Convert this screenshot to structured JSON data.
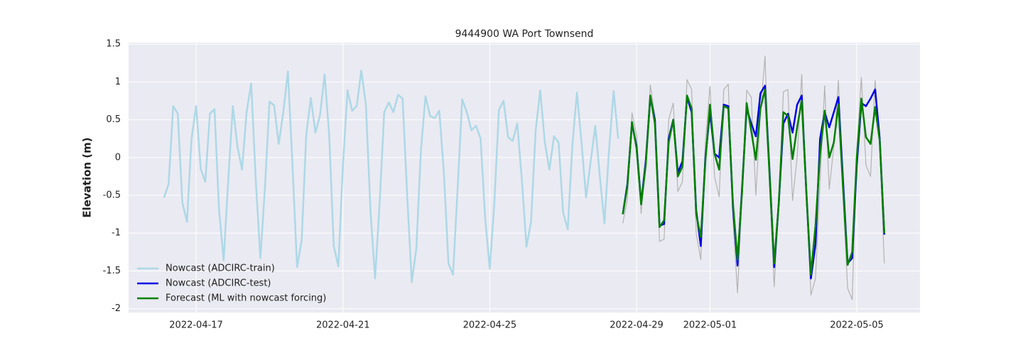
{
  "chart_data": {
    "type": "line",
    "title": "9444900 WA Port Townsend",
    "y_label": "Elevation (m)",
    "x": [
      "2022-04-16 03:00",
      "2022-04-16 06:00",
      "2022-04-16 09:00",
      "2022-04-16 12:00",
      "2022-04-16 15:00",
      "2022-04-16 18:00",
      "2022-04-16 21:00",
      "2022-04-17 00:00",
      "2022-04-17 03:00",
      "2022-04-17 06:00",
      "2022-04-17 09:00",
      "2022-04-17 12:00",
      "2022-04-17 15:00",
      "2022-04-17 18:00",
      "2022-04-17 21:00",
      "2022-04-18 00:00",
      "2022-04-18 03:00",
      "2022-04-18 06:00",
      "2022-04-18 09:00",
      "2022-04-18 12:00",
      "2022-04-18 15:00",
      "2022-04-18 18:00",
      "2022-04-18 21:00",
      "2022-04-19 00:00",
      "2022-04-19 03:00",
      "2022-04-19 06:00",
      "2022-04-19 09:00",
      "2022-04-19 12:00",
      "2022-04-19 15:00",
      "2022-04-19 18:00",
      "2022-04-19 21:00",
      "2022-04-20 00:00",
      "2022-04-20 03:00",
      "2022-04-20 06:00",
      "2022-04-20 09:00",
      "2022-04-20 12:00",
      "2022-04-20 15:00",
      "2022-04-20 18:00",
      "2022-04-20 21:00",
      "2022-04-21 00:00",
      "2022-04-21 03:00",
      "2022-04-21 06:00",
      "2022-04-21 09:00",
      "2022-04-21 12:00",
      "2022-04-21 15:00",
      "2022-04-21 18:00",
      "2022-04-21 21:00",
      "2022-04-22 00:00",
      "2022-04-22 03:00",
      "2022-04-22 06:00",
      "2022-04-22 09:00",
      "2022-04-22 12:00",
      "2022-04-22 15:00",
      "2022-04-22 18:00",
      "2022-04-22 21:00",
      "2022-04-23 00:00",
      "2022-04-23 03:00",
      "2022-04-23 06:00",
      "2022-04-23 09:00",
      "2022-04-23 12:00",
      "2022-04-23 15:00",
      "2022-04-23 18:00",
      "2022-04-23 21:00",
      "2022-04-24 00:00",
      "2022-04-24 03:00",
      "2022-04-24 06:00",
      "2022-04-24 09:00",
      "2022-04-24 12:00",
      "2022-04-24 15:00",
      "2022-04-24 18:00",
      "2022-04-24 21:00",
      "2022-04-25 00:00",
      "2022-04-25 03:00",
      "2022-04-25 06:00",
      "2022-04-25 09:00",
      "2022-04-25 12:00",
      "2022-04-25 15:00",
      "2022-04-25 18:00",
      "2022-04-25 21:00",
      "2022-04-26 00:00",
      "2022-04-26 03:00",
      "2022-04-26 06:00",
      "2022-04-26 09:00",
      "2022-04-26 12:00",
      "2022-04-26 15:00",
      "2022-04-26 18:00",
      "2022-04-26 21:00",
      "2022-04-27 00:00",
      "2022-04-27 03:00",
      "2022-04-27 06:00",
      "2022-04-27 09:00",
      "2022-04-27 12:00",
      "2022-04-27 15:00",
      "2022-04-27 18:00",
      "2022-04-27 21:00",
      "2022-04-28 00:00",
      "2022-04-28 03:00",
      "2022-04-28 06:00",
      "2022-04-28 09:00",
      "2022-04-28 12:00",
      "2022-04-28 15:00",
      "2022-04-28 18:00",
      "2022-04-28 21:00",
      "2022-04-29 00:00",
      "2022-04-29 03:00",
      "2022-04-29 06:00",
      "2022-04-29 09:00",
      "2022-04-29 12:00",
      "2022-04-29 15:00",
      "2022-04-29 18:00",
      "2022-04-29 21:00",
      "2022-04-30 00:00",
      "2022-04-30 03:00",
      "2022-04-30 06:00",
      "2022-04-30 09:00",
      "2022-04-30 12:00",
      "2022-04-30 15:00",
      "2022-04-30 18:00",
      "2022-04-30 21:00",
      "2022-05-01 00:00",
      "2022-05-01 03:00",
      "2022-05-01 06:00",
      "2022-05-01 09:00",
      "2022-05-01 12:00",
      "2022-05-01 15:00",
      "2022-05-01 18:00",
      "2022-05-01 21:00",
      "2022-05-02 00:00",
      "2022-05-02 03:00",
      "2022-05-02 06:00",
      "2022-05-02 09:00",
      "2022-05-02 12:00",
      "2022-05-02 15:00",
      "2022-05-02 18:00",
      "2022-05-02 21:00",
      "2022-05-03 00:00",
      "2022-05-03 03:00",
      "2022-05-03 06:00",
      "2022-05-03 09:00",
      "2022-05-03 12:00",
      "2022-05-03 15:00",
      "2022-05-03 18:00",
      "2022-05-03 21:00",
      "2022-05-04 00:00",
      "2022-05-04 03:00",
      "2022-05-04 06:00",
      "2022-05-04 09:00",
      "2022-05-04 12:00",
      "2022-05-04 15:00",
      "2022-05-04 18:00",
      "2022-05-04 21:00",
      "2022-05-05 00:00",
      "2022-05-05 03:00",
      "2022-05-05 06:00",
      "2022-05-05 09:00",
      "2022-05-05 12:00",
      "2022-05-05 15:00",
      "2022-05-05 18:00"
    ],
    "series": [
      {
        "color": "#b3b3b3",
        "width": 1.2,
        "values": [
          null,
          null,
          null,
          null,
          null,
          null,
          null,
          null,
          null,
          null,
          null,
          null,
          null,
          null,
          null,
          null,
          null,
          null,
          null,
          null,
          null,
          null,
          null,
          null,
          null,
          null,
          null,
          null,
          null,
          null,
          null,
          null,
          null,
          null,
          null,
          null,
          null,
          null,
          null,
          null,
          null,
          null,
          null,
          null,
          null,
          null,
          null,
          null,
          null,
          null,
          null,
          null,
          null,
          null,
          null,
          null,
          null,
          null,
          null,
          null,
          null,
          null,
          null,
          null,
          null,
          null,
          null,
          null,
          null,
          null,
          null,
          null,
          null,
          null,
          null,
          null,
          null,
          null,
          null,
          null,
          null,
          null,
          null,
          null,
          null,
          null,
          null,
          null,
          null,
          null,
          null,
          null,
          null,
          null,
          null,
          null,
          null,
          null,
          null,
          null,
          -0.87,
          -0.55,
          0.59,
          0.3,
          -0.74,
          0.0,
          0.96,
          0.55,
          -1.11,
          -1.08,
          0.5,
          0.72,
          -0.45,
          -0.32,
          1.03,
          0.9,
          -1.0,
          -1.35,
          0.2,
          0.94,
          -0.25,
          -0.52,
          0.9,
          0.97,
          -0.8,
          -1.79,
          -0.5,
          0.89,
          0.8,
          -0.5,
          0.6,
          1.34,
          -0.4,
          -1.71,
          -0.6,
          0.87,
          0.9,
          -0.57,
          0.0,
          1.1,
          -0.5,
          -1.82,
          -1.6,
          -0.3,
          0.95,
          -0.42,
          0.15,
          1.02,
          -0.5,
          -1.73,
          -1.88,
          0.1,
          1.06,
          -0.1,
          -0.25,
          1.02,
          0.15,
          -1.4
        ]
      },
      {
        "name": "Nowcast (ADCIRC-train)",
        "color": "#add8e6",
        "width": 2.5,
        "values": [
          -0.53,
          -0.35,
          0.68,
          0.58,
          -0.6,
          -0.85,
          0.25,
          0.68,
          -0.15,
          -0.32,
          0.58,
          0.64,
          -0.7,
          -1.36,
          -0.3,
          0.68,
          0.15,
          -0.16,
          0.6,
          0.98,
          -0.3,
          -1.33,
          -0.4,
          0.74,
          0.69,
          0.18,
          0.6,
          1.14,
          -0.1,
          -1.45,
          -1.1,
          0.3,
          0.79,
          0.33,
          0.56,
          1.1,
          0.3,
          -1.17,
          -1.44,
          -0.1,
          0.89,
          0.62,
          0.68,
          1.15,
          0.7,
          -0.7,
          -1.6,
          -0.6,
          0.6,
          0.73,
          0.6,
          0.83,
          0.78,
          -0.5,
          -1.65,
          -1.2,
          0.1,
          0.81,
          0.55,
          0.52,
          0.62,
          -0.2,
          -1.4,
          -1.55,
          -0.4,
          0.77,
          0.6,
          0.36,
          0.42,
          0.25,
          -0.8,
          -1.47,
          -0.6,
          0.63,
          0.75,
          0.27,
          0.22,
          0.45,
          -0.3,
          -1.18,
          -0.85,
          0.35,
          0.89,
          0.2,
          -0.16,
          0.28,
          0.2,
          -0.73,
          -0.95,
          0.15,
          0.86,
          0.2,
          -0.53,
          -0.05,
          0.42,
          -0.25,
          -0.87,
          0.1,
          0.88,
          0.25,
          null,
          null,
          null,
          null,
          null,
          null,
          null,
          null,
          null,
          null,
          null,
          null,
          null,
          null,
          null,
          null,
          null,
          null,
          null,
          null,
          null,
          null,
          null,
          null,
          null,
          null,
          null,
          null,
          null,
          null,
          null,
          null,
          null,
          null,
          null,
          null,
          null,
          null,
          null,
          null,
          null,
          null,
          null,
          null,
          null,
          null,
          null,
          null,
          null,
          null,
          null,
          null,
          null,
          null,
          null,
          null,
          null,
          null
        ]
      },
      {
        "name": "Nowcast (ADCIRC-test)",
        "color": "#0000e6",
        "width": 2.5,
        "values": [
          null,
          null,
          null,
          null,
          null,
          null,
          null,
          null,
          null,
          null,
          null,
          null,
          null,
          null,
          null,
          null,
          null,
          null,
          null,
          null,
          null,
          null,
          null,
          null,
          null,
          null,
          null,
          null,
          null,
          null,
          null,
          null,
          null,
          null,
          null,
          null,
          null,
          null,
          null,
          null,
          null,
          null,
          null,
          null,
          null,
          null,
          null,
          null,
          null,
          null,
          null,
          null,
          null,
          null,
          null,
          null,
          null,
          null,
          null,
          null,
          null,
          null,
          null,
          null,
          null,
          null,
          null,
          null,
          null,
          null,
          null,
          null,
          null,
          null,
          null,
          null,
          null,
          null,
          null,
          null,
          null,
          null,
          null,
          null,
          null,
          null,
          null,
          null,
          null,
          null,
          null,
          null,
          null,
          null,
          null,
          null,
          null,
          null,
          null,
          null,
          -0.75,
          -0.35,
          0.45,
          0.15,
          -0.6,
          -0.05,
          0.8,
          0.5,
          -0.9,
          -0.88,
          0.25,
          0.5,
          -0.2,
          -0.05,
          0.8,
          0.6,
          -0.7,
          -1.17,
          0.0,
          0.6,
          0.05,
          0.0,
          0.7,
          0.68,
          -0.65,
          -1.43,
          -0.4,
          0.65,
          0.45,
          0.28,
          0.85,
          0.95,
          -0.2,
          -1.45,
          -0.6,
          0.45,
          0.58,
          0.33,
          0.7,
          0.82,
          -0.45,
          -1.6,
          -1.15,
          0.25,
          0.6,
          0.4,
          0.6,
          0.8,
          -0.3,
          -1.4,
          -1.33,
          -0.1,
          0.72,
          0.68,
          0.78,
          0.9,
          0.25,
          -1.02
        ]
      },
      {
        "name": "Forecast (ML with nowcast forcing)",
        "color": "#008000",
        "width": 2.5,
        "values": [
          null,
          null,
          null,
          null,
          null,
          null,
          null,
          null,
          null,
          null,
          null,
          null,
          null,
          null,
          null,
          null,
          null,
          null,
          null,
          null,
          null,
          null,
          null,
          null,
          null,
          null,
          null,
          null,
          null,
          null,
          null,
          null,
          null,
          null,
          null,
          null,
          null,
          null,
          null,
          null,
          null,
          null,
          null,
          null,
          null,
          null,
          null,
          null,
          null,
          null,
          null,
          null,
          null,
          null,
          null,
          null,
          null,
          null,
          null,
          null,
          null,
          null,
          null,
          null,
          null,
          null,
          null,
          null,
          null,
          null,
          null,
          null,
          null,
          null,
          null,
          null,
          null,
          null,
          null,
          null,
          null,
          null,
          null,
          null,
          null,
          null,
          null,
          null,
          null,
          null,
          null,
          null,
          null,
          null,
          null,
          null,
          null,
          null,
          null,
          null,
          -0.75,
          -0.38,
          0.47,
          0.12,
          -0.62,
          -0.1,
          0.82,
          0.45,
          -0.92,
          -0.83,
          0.2,
          0.5,
          -0.25,
          -0.12,
          0.82,
          0.65,
          -0.75,
          -1.05,
          -0.05,
          0.7,
          0.05,
          -0.16,
          0.68,
          0.65,
          -0.6,
          -1.35,
          -0.45,
          0.72,
          0.35,
          -0.03,
          0.65,
          0.9,
          -0.25,
          -1.4,
          -0.6,
          0.6,
          0.55,
          -0.02,
          0.4,
          0.75,
          -0.45,
          -1.55,
          -0.9,
          0.05,
          0.62,
          0.0,
          0.2,
          0.7,
          -0.4,
          -1.42,
          -1.25,
          0.0,
          0.78,
          0.27,
          0.18,
          0.67,
          0.22,
          -1.0
        ]
      }
    ],
    "xlim": [
      "2022-04-15 03:50",
      "2022-05-06 17:20"
    ],
    "xticks": [
      "2022-04-17",
      "2022-04-21",
      "2022-04-25",
      "2022-04-29",
      "2022-05-01",
      "2022-05-05"
    ],
    "ylim": [
      -2.05,
      1.52
    ],
    "yticks": [
      -2.0,
      -1.5,
      -1.0,
      -0.5,
      0.0,
      0.5,
      1.0,
      1.5
    ],
    "grid": true,
    "legend": "lower left"
  }
}
